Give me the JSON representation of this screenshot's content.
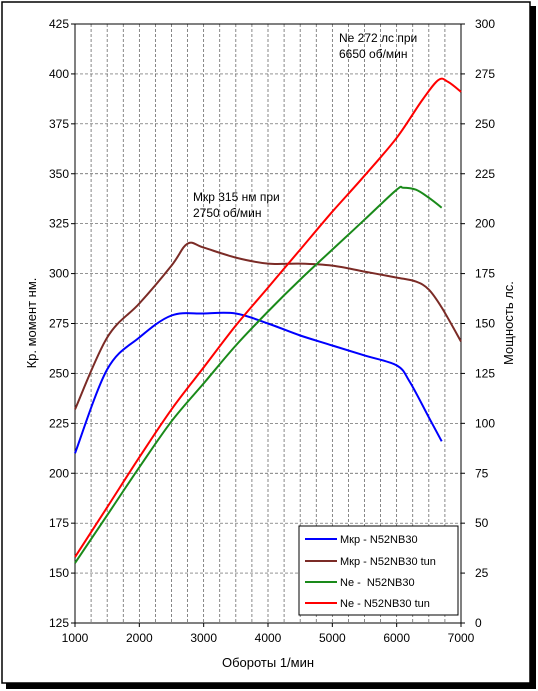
{
  "chart_data": {
    "type": "line",
    "xlabel": "Обороты 1/мин",
    "ylabel_left": "Кр. момент нм.",
    "ylabel_right": "Мощность лс.",
    "xlim": [
      1000,
      7000
    ],
    "ylim_left": [
      125,
      425
    ],
    "ylim_right": [
      0,
      300
    ],
    "x_ticks": [
      1000,
      2000,
      3000,
      4000,
      5000,
      6000,
      7000
    ],
    "y_left_ticks": [
      125,
      150,
      175,
      200,
      225,
      250,
      275,
      300,
      325,
      350,
      375,
      400,
      425
    ],
    "y_right_ticks": [
      0,
      25,
      50,
      75,
      100,
      125,
      150,
      175,
      200,
      225,
      250,
      275,
      300
    ],
    "grid": true,
    "legend_position": "bottom-right",
    "annotations": [
      {
        "lines": [
          "Ne 272 лс при",
          "6650 об/мин"
        ]
      },
      {
        "lines": [
          "Мкр 315 нм при",
          "2750 об/мин"
        ]
      }
    ],
    "colors": {
      "torque_stock": "#0000ff",
      "torque_tuned": "#7b2b26",
      "power_stock": "#1a8a1a",
      "power_tuned": "#ff0000"
    },
    "series": [
      {
        "name": "Мкр - N52NB30",
        "axis": "left",
        "color": "#0000ff",
        "x": [
          1000,
          1500,
          2000,
          2500,
          3000,
          3500,
          4000,
          4500,
          5000,
          5500,
          6000,
          6200,
          6500,
          6700
        ],
        "y": [
          210,
          252,
          268,
          279,
          280,
          280,
          275,
          269,
          264,
          259,
          254,
          246,
          228,
          216
        ]
      },
      {
        "name": "Мкр - N52NB30 tun",
        "axis": "left",
        "color": "#7b2b26",
        "x": [
          1000,
          1500,
          2000,
          2500,
          2750,
          3000,
          3500,
          4000,
          4500,
          5000,
          5500,
          6000,
          6300,
          6500,
          6700,
          7000
        ],
        "y": [
          232,
          268,
          285,
          304,
          315,
          313,
          308,
          305,
          305,
          304,
          301,
          298,
          296,
          292,
          283,
          266
        ]
      },
      {
        "name": "Ne -  N52NB30",
        "axis": "right",
        "color": "#1a8a1a",
        "x": [
          1000,
          1500,
          2000,
          2500,
          3000,
          3500,
          4000,
          4500,
          5000,
          5500,
          6000,
          6100,
          6300,
          6500,
          6700
        ],
        "y": [
          30,
          54,
          78,
          101,
          120,
          139,
          156,
          172,
          187,
          202,
          217,
          218,
          217,
          213,
          208
        ]
      },
      {
        "name": "Ne - N52NB30 tun",
        "axis": "right",
        "color": "#ff0000",
        "x": [
          1000,
          1500,
          2000,
          2500,
          3000,
          3500,
          4000,
          4500,
          5000,
          5500,
          6000,
          6400,
          6650,
          6800,
          7000
        ],
        "y": [
          33,
          58,
          83,
          107,
          128,
          149,
          168,
          187,
          206,
          224,
          243,
          262,
          272,
          271,
          266
        ]
      }
    ]
  }
}
